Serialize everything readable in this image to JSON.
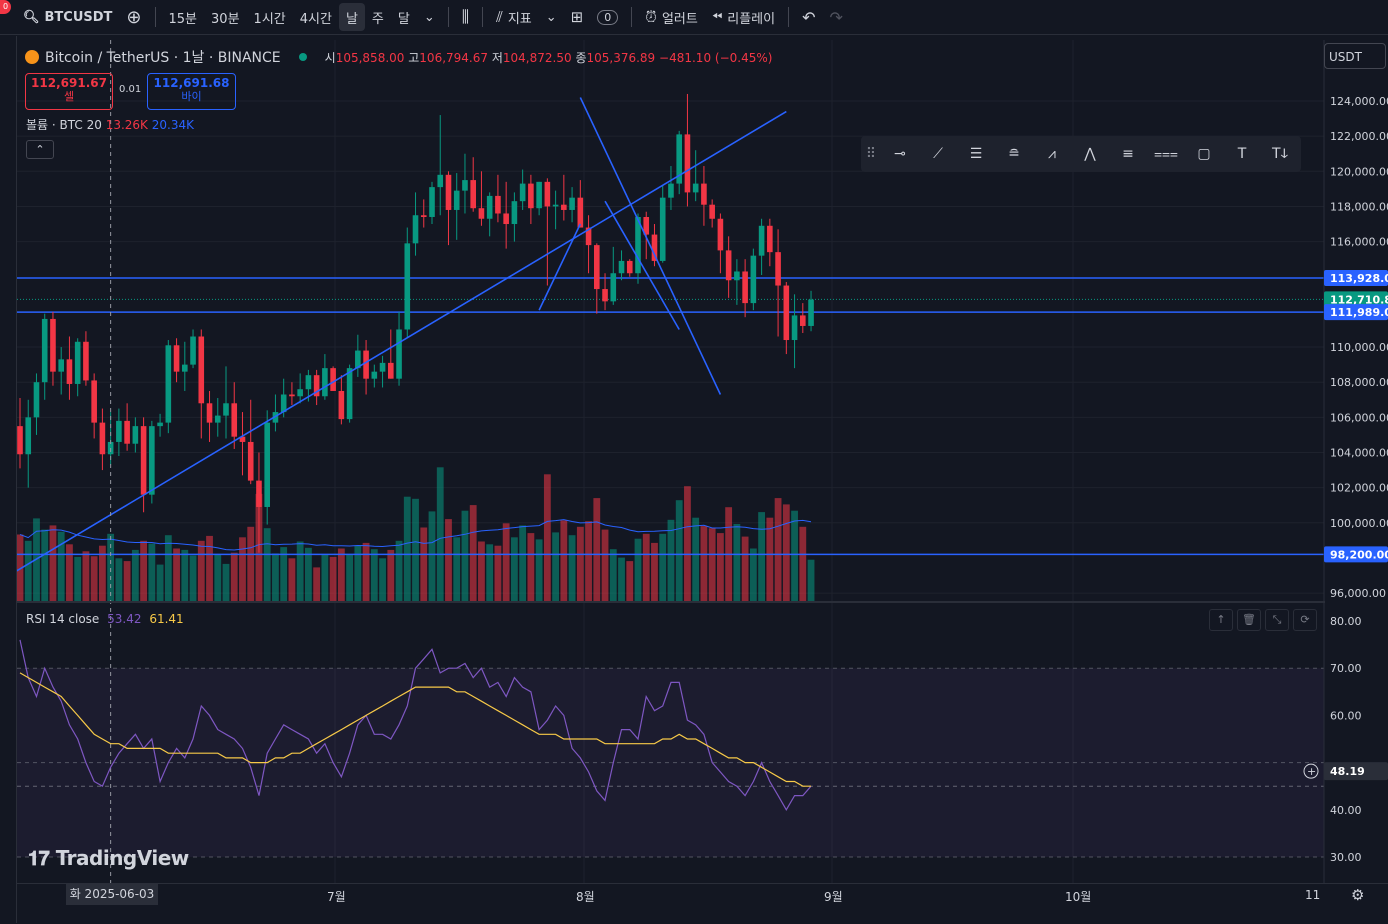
{
  "toolbar": {
    "notification_count": "0",
    "symbol": "BTCUSDT",
    "intervals": [
      "15분",
      "30분",
      "1시간",
      "4시간",
      "날",
      "주",
      "달"
    ],
    "active_interval": "날",
    "indicators_label": "지표",
    "layout_badge": "0",
    "alert_label": "얼러트",
    "replay_label": "리플레이"
  },
  "legend": {
    "name": "Bitcoin / TetherUS · 1날 · BINANCE",
    "open_label": "시",
    "open": "105,858.00",
    "high_label": "고",
    "high": "106,794.67",
    "low_label": "저",
    "low": "104,872.50",
    "close_label": "종",
    "close": "105,376.89",
    "change": "−481.10 (−0.45%)"
  },
  "trade": {
    "sell_price": "112,691.67",
    "sell_label": "셀",
    "spread": "0.01",
    "buy_price": "112,691.68",
    "buy_label": "바이"
  },
  "volume_legend": {
    "label": "볼륨 · BTC 20",
    "v1": "13.26K",
    "v2": "20.34K"
  },
  "rsi_legend": {
    "label": "RSI 14 close",
    "v1": "53.42",
    "v2": "61.41"
  },
  "price_axis": {
    "currency": "USDT",
    "ticks": [
      "124,000.00",
      "122,000.00",
      "120,000.00",
      "118,000.00",
      "116,000.00",
      "110,000.00",
      "108,000.00",
      "106,000.00",
      "104,000.00",
      "102,000.00",
      "100,000.00",
      "96,000.00"
    ],
    "tick_values": [
      124000,
      122000,
      120000,
      118000,
      116000,
      110000,
      108000,
      106000,
      104000,
      102000,
      100000,
      96000
    ],
    "tag_levels": [
      {
        "text": "113,928.00",
        "value": 113928,
        "color": "#2962ff"
      },
      {
        "text": "112,710.80",
        "value": 112710.8,
        "color": "#089981"
      },
      {
        "text": "111,989.01",
        "value": 111989.01,
        "color": "#2962ff"
      },
      {
        "text": "98,200.00",
        "value": 98200,
        "color": "#2962ff"
      }
    ]
  },
  "rsi_axis": {
    "ticks": [
      "80.00",
      "70.00",
      "60.00",
      "40.00",
      "30.00"
    ],
    "tick_values": [
      80,
      70,
      60,
      40,
      30
    ],
    "current": "48.19",
    "current_value": 48.19
  },
  "time_axis": {
    "labels": [
      "7월",
      "8월",
      "9월",
      "10월",
      "11"
    ],
    "crosshair_date": "화 2025-06-03"
  },
  "branding": "TradingView",
  "colors": {
    "up": "#089981",
    "down": "#f23645",
    "line": "#2962ff",
    "rsi": "#7e57c2",
    "rsi_ma": "#f7c948"
  },
  "chart_data": {
    "type": "candlestick",
    "start_date": "2025-05-19",
    "candles": [
      [
        105500,
        107100,
        103100,
        103900
      ],
      [
        103900,
        107000,
        102000,
        106000
      ],
      [
        106000,
        108500,
        105000,
        108000
      ],
      [
        108000,
        111900,
        107000,
        111600
      ],
      [
        111600,
        112000,
        107800,
        108600
      ],
      [
        108600,
        110000,
        107300,
        109300
      ],
      [
        109300,
        110600,
        107000,
        107900
      ],
      [
        107900,
        110500,
        107200,
        110300
      ],
      [
        110300,
        110900,
        107800,
        108100
      ],
      [
        108100,
        108500,
        104800,
        105700
      ],
      [
        105700,
        106500,
        103000,
        103900
      ],
      [
        103900,
        106300,
        103300,
        104600
      ],
      [
        104600,
        106500,
        103800,
        105800
      ],
      [
        105800,
        106800,
        104100,
        104500
      ],
      [
        104500,
        106000,
        104000,
        105500
      ],
      [
        105500,
        106000,
        100600,
        101600
      ],
      [
        101600,
        105800,
        101100,
        105500
      ],
      [
        105500,
        106200,
        104900,
        105700
      ],
      [
        105700,
        110400,
        105100,
        110100
      ],
      [
        110100,
        110500,
        108000,
        108600
      ],
      [
        108600,
        110300,
        107500,
        109000
      ],
      [
        109000,
        111000,
        108800,
        110600
      ],
      [
        110600,
        111000,
        104800,
        106800
      ],
      [
        106800,
        107500,
        104600,
        105700
      ],
      [
        105700,
        107100,
        104900,
        106100
      ],
      [
        106100,
        108900,
        104800,
        106800
      ],
      [
        106800,
        108000,
        104200,
        104900
      ],
      [
        104900,
        106300,
        102700,
        104600
      ],
      [
        104600,
        107000,
        102200,
        102400
      ],
      [
        102400,
        104000,
        98300,
        100900
      ],
      [
        100900,
        106400,
        99900,
        105700
      ],
      [
        105700,
        107300,
        105200,
        106300
      ],
      [
        106300,
        108200,
        106000,
        107300
      ],
      [
        107300,
        108000,
        106700,
        107200
      ],
      [
        107200,
        108500,
        106800,
        107600
      ],
      [
        107600,
        108700,
        106900,
        108400
      ],
      [
        108400,
        108700,
        106700,
        107200
      ],
      [
        107200,
        109600,
        107000,
        108800
      ],
      [
        108800,
        108900,
        107500,
        107500
      ],
      [
        107500,
        108400,
        105600,
        105900
      ],
      [
        105900,
        109000,
        105700,
        108800
      ],
      [
        108800,
        110700,
        108300,
        109800
      ],
      [
        109800,
        110400,
        107300,
        108200
      ],
      [
        108200,
        109000,
        107700,
        108600
      ],
      [
        108600,
        109500,
        107700,
        109100
      ],
      [
        109100,
        111000,
        108200,
        108200
      ],
      [
        108200,
        112000,
        107800,
        111000
      ],
      [
        111000,
        116800,
        110500,
        115900
      ],
      [
        115900,
        118800,
        115200,
        117500
      ],
      [
        117500,
        118400,
        116800,
        117400
      ],
      [
        117400,
        119400,
        117000,
        119100
      ],
      [
        119100,
        123200,
        117500,
        119800
      ],
      [
        119800,
        120000,
        115800,
        117800
      ],
      [
        117800,
        119900,
        116100,
        118900
      ],
      [
        118900,
        121000,
        117600,
        119500
      ],
      [
        119500,
        120800,
        117700,
        117900
      ],
      [
        117900,
        120000,
        116900,
        117300
      ],
      [
        117300,
        118800,
        116300,
        118600
      ],
      [
        118600,
        119800,
        117100,
        117600
      ],
      [
        117600,
        119400,
        115600,
        117000
      ],
      [
        117000,
        118800,
        116000,
        118300
      ],
      [
        118300,
        120100,
        117800,
        119300
      ],
      [
        119300,
        119800,
        117000,
        117900
      ],
      [
        117900,
        119400,
        117500,
        119400
      ],
      [
        119400,
        119600,
        113500,
        118000
      ],
      [
        118000,
        118900,
        116700,
        118100
      ],
      [
        118100,
        119800,
        117200,
        117800
      ],
      [
        117800,
        119100,
        117100,
        118500
      ],
      [
        118500,
        119500,
        116800,
        116800
      ],
      [
        116800,
        117500,
        114200,
        115800
      ],
      [
        115800,
        115900,
        111900,
        113300
      ],
      [
        113300,
        114200,
        112100,
        112600
      ],
      [
        112600,
        115700,
        112400,
        114200
      ],
      [
        114200,
        115500,
        113800,
        114900
      ],
      [
        114900,
        115000,
        114000,
        114200
      ],
      [
        114200,
        117600,
        113600,
        117400
      ],
      [
        117400,
        117700,
        115000,
        116400
      ],
      [
        116400,
        117000,
        114600,
        114900
      ],
      [
        114900,
        119200,
        114800,
        118500
      ],
      [
        118500,
        120300,
        117800,
        119300
      ],
      [
        119300,
        122300,
        118700,
        122100
      ],
      [
        122100,
        124400,
        118000,
        118800
      ],
      [
        118800,
        121200,
        118300,
        119300
      ],
      [
        119300,
        120300,
        116900,
        118100
      ],
      [
        118100,
        118400,
        116800,
        117300
      ],
      [
        117300,
        117600,
        114200,
        115500
      ],
      [
        115500,
        116300,
        112800,
        113800
      ],
      [
        113800,
        115000,
        112400,
        114300
      ],
      [
        114300,
        115000,
        111700,
        112500
      ],
      [
        112500,
        115600,
        112100,
        115200
      ],
      [
        115200,
        117300,
        114100,
        116900
      ],
      [
        116900,
        117300,
        114600,
        115400
      ],
      [
        115400,
        116700,
        110600,
        113500
      ],
      [
        113500,
        113700,
        109600,
        110400
      ],
      [
        110400,
        113000,
        108800,
        111800
      ],
      [
        111800,
        112500,
        110800,
        111200
      ],
      [
        111200,
        113200,
        110900,
        112700
      ]
    ],
    "volume": [
      9.5,
      8.6,
      11.8,
      10.2,
      10.8,
      9.9,
      8.1,
      6.3,
      7.1,
      6.4,
      7.9,
      9.6,
      6.1,
      5.7,
      7.3,
      8.6,
      8.2,
      5.2,
      9.4,
      7.5,
      7.3,
      6.5,
      8.6,
      9.3,
      6.6,
      5.3,
      6.9,
      9.1,
      10.6,
      15.3,
      10.4,
      6.8,
      7.7,
      6.1,
      8.5,
      7.6,
      4.8,
      6.6,
      6.3,
      7.5,
      6.6,
      7.9,
      8.3,
      7.4,
      6.1,
      7.3,
      8.6,
      14.9,
      14.6,
      10.5,
      12.8,
      19.1,
      11.7,
      9.1,
      12.9,
      13.7,
      8.5,
      8.1,
      7.9,
      11.1,
      9.1,
      10.8,
      9.7,
      8.8,
      18.1,
      9.8,
      11.5,
      9.4,
      10.6,
      11.4,
      14.7,
      10.2,
      7.4,
      6.2,
      5.7,
      8.9,
      9.6,
      8.3,
      9.6,
      11.6,
      14.4,
      16.4,
      11.9,
      10.7,
      10.4,
      9.7,
      13.4,
      11.0,
      9.2,
      7.5,
      12.7,
      11.9,
      14.7,
      13.8,
      12.9,
      10.6,
      5.9
    ],
    "rsi": [
      76,
      68,
      64,
      70,
      66,
      63,
      58,
      55,
      50,
      46,
      45,
      49,
      52,
      54,
      56,
      53,
      55,
      46,
      50,
      53,
      51,
      55,
      62,
      60,
      57,
      56,
      55,
      53,
      49,
      43,
      52,
      55,
      58,
      57,
      56,
      55,
      52,
      54,
      50,
      47,
      52,
      58,
      60,
      56,
      56,
      55,
      58,
      62,
      70,
      72,
      74,
      69,
      70,
      70,
      71,
      68,
      70,
      66,
      67,
      64,
      68,
      66,
      65,
      57,
      59,
      62,
      60,
      53,
      51,
      48,
      44,
      42,
      50,
      57,
      57,
      55,
      64,
      61,
      62,
      67,
      67,
      59,
      58,
      56,
      50,
      48,
      46,
      45,
      43,
      46,
      50,
      46,
      43,
      40,
      43,
      43,
      45
    ],
    "rsi_ma": [
      69,
      68,
      67,
      66,
      65,
      64,
      62,
      60,
      58,
      56,
      55,
      54,
      54,
      53,
      53,
      53,
      53,
      53,
      52,
      52,
      52,
      52,
      52,
      52,
      52,
      51,
      51,
      51,
      50,
      50,
      50,
      51,
      51,
      52,
      52,
      53,
      54,
      55,
      56,
      57,
      58,
      59,
      60,
      61,
      62,
      63,
      64,
      65,
      66,
      66,
      66,
      66,
      66,
      65,
      65,
      64,
      63,
      62,
      61,
      60,
      59,
      58,
      57,
      56,
      56,
      56,
      55,
      55,
      55,
      55,
      55,
      54,
      54,
      54,
      54,
      54,
      54,
      54,
      55,
      55,
      56,
      55,
      55,
      54,
      53,
      52,
      51,
      51,
      50,
      50,
      49,
      48,
      47,
      46,
      46,
      45,
      45
    ],
    "trendlines": [
      {
        "p1": [
          -1,
          97100
        ],
        "p2": [
          93,
          123400
        ]
      },
      {
        "p1": [
          63,
          112100
        ],
        "p2": [
          68,
          117000
        ]
      },
      {
        "p1": [
          68,
          124200
        ],
        "p2": [
          85,
          107300
        ]
      },
      {
        "p1": [
          71,
          118300
        ],
        "p2": [
          80,
          111000
        ]
      }
    ],
    "hlines": [
      113928,
      111989.01,
      98200
    ],
    "current_price": 112710.8
  }
}
